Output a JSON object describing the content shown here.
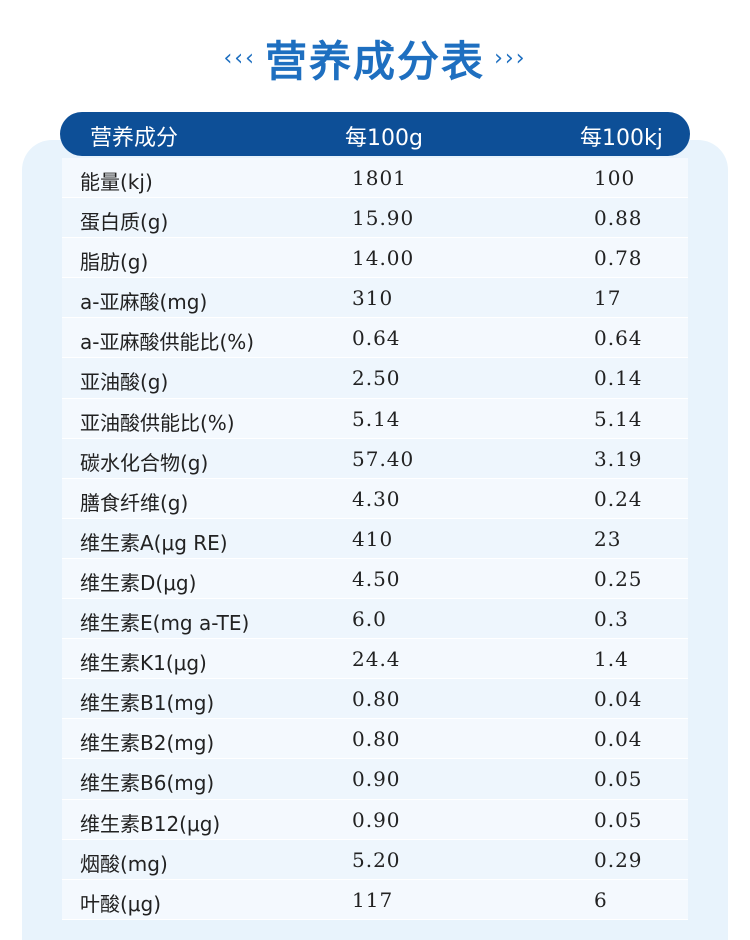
{
  "title": {
    "left_deco": "‹‹‹",
    "text": "营养成分表",
    "right_deco": "›››"
  },
  "header": {
    "col1": "营养成分",
    "col2": "每100g",
    "col3": "每100kj"
  },
  "rows": [
    {
      "name": "能量(kj)",
      "per100g": "1801",
      "per100kj": "100"
    },
    {
      "name": "蛋白质(g)",
      "per100g": "15.90",
      "per100kj": "0.88"
    },
    {
      "name": "脂肪(g)",
      "per100g": "14.00",
      "per100kj": "0.78"
    },
    {
      "name": "a-亚麻酸(mg)",
      "per100g": "310",
      "per100kj": "17"
    },
    {
      "name": "a-亚麻酸供能比(%)",
      "per100g": "0.64",
      "per100kj": "0.64"
    },
    {
      "name": "亚油酸(g)",
      "per100g": "2.50",
      "per100kj": "0.14"
    },
    {
      "name": "亚油酸供能比(%)",
      "per100g": "5.14",
      "per100kj": "5.14"
    },
    {
      "name": "碳水化合物(g)",
      "per100g": "57.40",
      "per100kj": "3.19"
    },
    {
      "name": "膳食纤维(g)",
      "per100g": "4.30",
      "per100kj": "0.24"
    },
    {
      "name": "维生素A(μg RE)",
      "per100g": "410",
      "per100kj": "23"
    },
    {
      "name": "维生素D(μg)",
      "per100g": "4.50",
      "per100kj": "0.25"
    },
    {
      "name": "维生素E(mg a-TE)",
      "per100g": "6.0",
      "per100kj": "0.3"
    },
    {
      "name": "维生素K1(μg)",
      "per100g": "24.4",
      "per100kj": "1.4"
    },
    {
      "name": "维生素B1(mg)",
      "per100g": "0.80",
      "per100kj": "0.04"
    },
    {
      "name": "维生素B2(mg)",
      "per100g": "0.80",
      "per100kj": "0.04"
    },
    {
      "name": "维生素B6(mg)",
      "per100g": "0.90",
      "per100kj": "0.05"
    },
    {
      "name": "维生素B12(μg)",
      "per100g": "0.90",
      "per100kj": "0.05"
    },
    {
      "name": "烟酸(mg)",
      "per100g": "5.20",
      "per100kj": "0.29"
    },
    {
      "name": "叶酸(μg)",
      "per100g": "117",
      "per100kj": "6"
    }
  ]
}
